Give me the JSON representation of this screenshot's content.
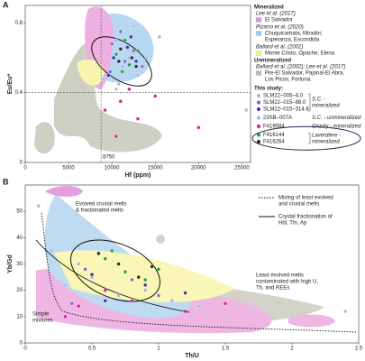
{
  "chart_data": [
    {
      "type": "scatter",
      "panel": "A",
      "xlabel": "Hf (ppm)",
      "ylabel": "Eu/Eu*",
      "xlim": [
        0,
        26000
      ],
      "xticks": [
        0,
        5000,
        10000,
        15000,
        20000,
        25000
      ],
      "ylim": [
        0,
        0.9
      ],
      "yticks": [
        0,
        0.4,
        0.8
      ],
      "ref_x": 8750,
      "ref_y": 0.4,
      "series": [
        {
          "name": "SLM22–005–4.0",
          "color": "#c0a8e0",
          "x": [
            9500,
            10500,
            11200,
            12000,
            13000,
            10800
          ],
          "values": [
            0.62,
            0.7,
            0.55,
            0.6,
            0.5,
            0.45
          ]
        },
        {
          "name": "SLM22–015–88.0",
          "color": "#8464c8",
          "x": [
            10000,
            11500,
            12500,
            9800,
            13500,
            11000
          ],
          "values": [
            0.68,
            0.58,
            0.64,
            0.52,
            0.55,
            0.75
          ]
        },
        {
          "name": "SLM22–015–314.8",
          "color": "#4a2a98",
          "x": [
            10200,
            11800,
            12800,
            9600,
            12200
          ],
          "values": [
            0.6,
            0.66,
            0.58,
            0.5,
            0.72
          ]
        },
        {
          "name": "23SB–007A",
          "color": "#a4bcd8",
          "x": [
            9000,
            10500,
            14000,
            15500,
            12500,
            25500
          ],
          "values": [
            0.48,
            0.42,
            0.6,
            0.72,
            0.78,
            0.3
          ]
        },
        {
          "name": "F419084",
          "color": "#e0189a",
          "x": [
            9200,
            11000,
            13000,
            15000,
            20000,
            12000,
            10500
          ],
          "values": [
            0.3,
            0.35,
            0.25,
            0.38,
            0.2,
            0.42,
            0.15
          ]
        },
        {
          "name": "F416144",
          "color": "#2a9a3a",
          "x": [
            10500,
            11500,
            12000,
            13000,
            11200
          ],
          "values": [
            0.62,
            0.7,
            0.56,
            0.64,
            0.52
          ]
        },
        {
          "name": "F416264",
          "color": "#1a2e1a",
          "x": [
            11000,
            12300,
            10800,
            12800
          ],
          "values": [
            0.65,
            0.6,
            0.58,
            0.55
          ]
        }
      ],
      "legend": {
        "mineralized_heading": "Mineralized",
        "fields": [
          {
            "author": "Lee et al. (2017)",
            "name": [
              "El Salvador"
            ],
            "color": "#e070c8"
          },
          {
            "author": "Pizarro et al. (2020)",
            "name": [
              "Chuquicamata, Mirador,",
              "Esperanza, Escondida"
            ],
            "color": "#7fb8e6"
          },
          {
            "author": "Ballard et al. (2002)",
            "name": [
              "Monte Cristo, Opache, Elena"
            ],
            "color": "#f4ee70"
          }
        ],
        "unmineralized_heading": "Unmineralized",
        "unmineralized_fields": [
          {
            "author": "Ballard et al. (2002); Lee et al. (2017)",
            "name": [
              "Pre-El Salvador, Pajonal-El Abra,",
              "Los Picos, Fortuna."
            ],
            "color": "#a8a894"
          }
        ],
        "study_heading": "This study:",
        "groups": [
          [
            "S.C. -",
            "mineralized"
          ],
          [
            "S.C. - unmineralized"
          ],
          [
            "Grizzly - mineralized"
          ],
          [
            "Laverdiere -",
            "mineralized"
          ]
        ]
      }
    },
    {
      "type": "scatter",
      "panel": "B",
      "xlabel": "Th/U",
      "ylabel": "Yb/Gd",
      "xlim": [
        0,
        2.5
      ],
      "xticks": [
        0,
        0.5,
        1,
        1.5,
        2,
        2.5
      ],
      "ylim": [
        0,
        60
      ],
      "yticks": [
        0,
        10,
        20,
        30,
        40,
        50
      ],
      "series": [
        {
          "color": "#c0a8e0",
          "x": [
            0.3,
            0.5,
            0.7,
            0.9,
            0.4,
            1.1
          ],
          "values": [
            22,
            25,
            18,
            20,
            30,
            16
          ]
        },
        {
          "color": "#8464c8",
          "x": [
            0.45,
            0.6,
            0.8,
            1.0,
            0.35
          ],
          "values": [
            28,
            20,
            24,
            18,
            15
          ]
        },
        {
          "color": "#4a2a98",
          "x": [
            0.5,
            0.7,
            0.9,
            0.6,
            1.2
          ],
          "values": [
            26,
            30,
            22,
            16,
            19
          ]
        },
        {
          "color": "#a4bcd8",
          "x": [
            0.2,
            0.9,
            1.3,
            2.4,
            0.1
          ],
          "values": [
            35,
            20,
            14,
            12,
            52
          ]
        },
        {
          "color": "#e0189a",
          "x": [
            0.4,
            0.8,
            1.2,
            0.3,
            1.5,
            0.6
          ],
          "values": [
            14,
            16,
            12,
            10,
            15,
            20
          ]
        },
        {
          "color": "#2a9a3a",
          "x": [
            0.6,
            0.75,
            0.9,
            0.65,
            1.0
          ],
          "values": [
            32,
            27,
            24,
            35,
            28
          ]
        },
        {
          "color": "#1a2e1a",
          "x": [
            0.7,
            0.85,
            0.55,
            0.95
          ],
          "values": [
            30,
            25,
            34,
            29
          ]
        }
      ],
      "annotations": [
        [
          "Evolved crustal melts",
          "& fractionated melts"
        ],
        [
          "Least evolved melts",
          "contaminated with high U,",
          "Th, and REEs"
        ],
        [
          "Simple",
          "mixtures"
        ]
      ],
      "line_legend": [
        [
          "Mixing of least evolved",
          "and crustal melts"
        ],
        [
          "Crystal fractionation of",
          "Hbl, Ttn, Ap"
        ]
      ]
    }
  ]
}
